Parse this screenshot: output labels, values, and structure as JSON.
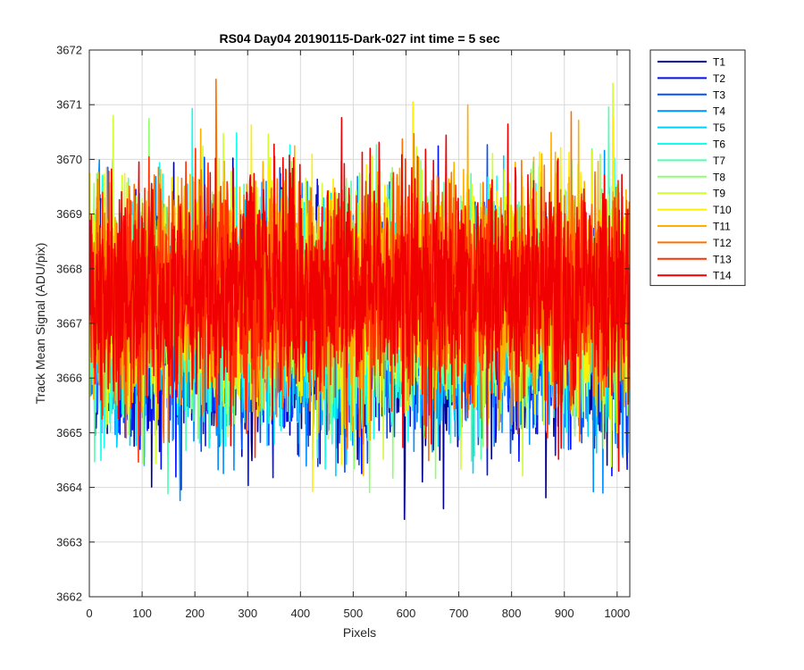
{
  "chart_data": {
    "type": "line",
    "title": "RS04 Day04 20190115-Dark-027 int time = 5 sec",
    "xlabel": "Pixels",
    "ylabel": "Track Mean Signal (ADU/pix)",
    "xlim": [
      0,
      1024
    ],
    "ylim": [
      3662,
      3672
    ],
    "xticks": [
      0,
      100,
      200,
      300,
      400,
      500,
      600,
      700,
      800,
      900,
      1000
    ],
    "yticks": [
      3662,
      3663,
      3664,
      3665,
      3666,
      3667,
      3668,
      3669,
      3670,
      3671,
      3672
    ],
    "grid": true,
    "legend_position": "outside-top-right",
    "x": {
      "start": 1,
      "end": 1024,
      "step": 1
    },
    "noise_sd_approx": 1.0,
    "series": [
      {
        "name": "T1",
        "color": "#00008f",
        "mean": 3666.7
      },
      {
        "name": "T2",
        "color": "#0010ff",
        "mean": 3666.8
      },
      {
        "name": "T3",
        "color": "#0050ff",
        "mean": 3666.9
      },
      {
        "name": "T4",
        "color": "#0090ff",
        "mean": 3667.0
      },
      {
        "name": "T5",
        "color": "#00cfff",
        "mean": 3667.1
      },
      {
        "name": "T6",
        "color": "#10ffef",
        "mean": 3667.2
      },
      {
        "name": "T7",
        "color": "#50ffaf",
        "mean": 3667.3
      },
      {
        "name": "T8",
        "color": "#8fff70",
        "mean": 3667.4
      },
      {
        "name": "T9",
        "color": "#cfff30",
        "mean": 3667.5
      },
      {
        "name": "T10",
        "color": "#ffef00",
        "mean": 3667.6
      },
      {
        "name": "T11",
        "color": "#ffaf00",
        "mean": 3667.6
      },
      {
        "name": "T12",
        "color": "#ff7000",
        "mean": 3667.6
      },
      {
        "name": "T13",
        "color": "#ff3000",
        "mean": 3667.6
      },
      {
        "name": "T14",
        "color": "#f00000",
        "mean": 3667.6
      }
    ]
  }
}
